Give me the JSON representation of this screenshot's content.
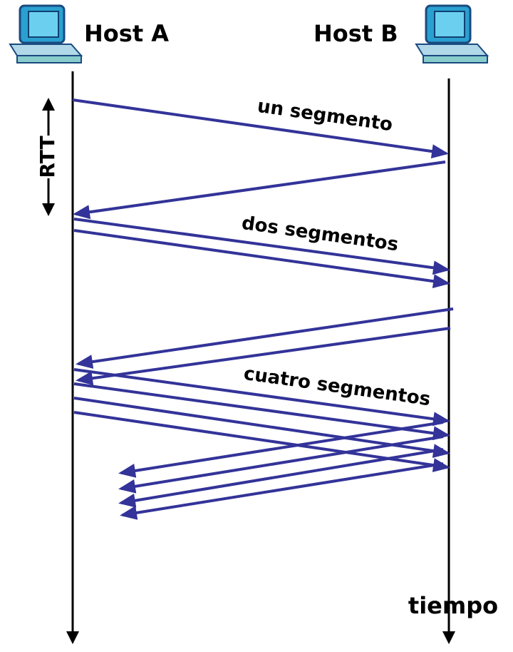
{
  "hosts": [
    {
      "label": "Host A"
    },
    {
      "label": "Host B"
    }
  ],
  "rtt_label": "RTT",
  "segment_labels": [
    "un segmento",
    "dos segmentos",
    "cuatro segmentos"
  ],
  "time_label": "tiempo"
}
